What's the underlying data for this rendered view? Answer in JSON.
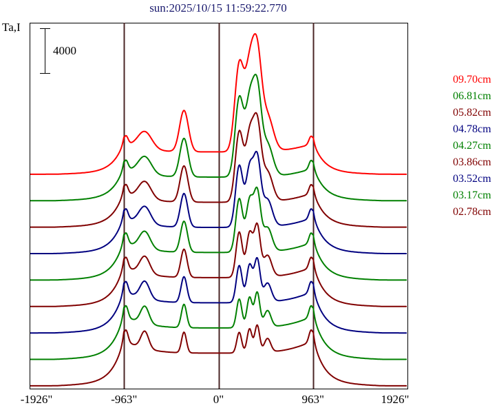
{
  "chart_data": {
    "type": "line",
    "title": "sun:2025/10/15 11:59:22.770",
    "ylabel": "Ta,I",
    "scale_bar_label": "4000",
    "scale_bar_value": 4000,
    "xlim": [
      -1926,
      1926
    ],
    "ylim": [
      -250,
      32400
    ],
    "x_ticks": [
      -1926,
      -963,
      0,
      963,
      1926
    ],
    "x_tick_labels": [
      "-1926\"",
      "-963\"",
      "0\"",
      "963\"",
      "1926\""
    ],
    "vertical_lines": [
      -963,
      0,
      963
    ],
    "offset_step": 2360,
    "limb": 963,
    "series": [
      {
        "name": "09.70cm",
        "color": "#ff0000",
        "disk": 2770,
        "sigma": 45,
        "peaks": [
          [
            -752,
            1540
          ],
          [
            -352,
            3690
          ],
          [
            211,
            7690
          ],
          [
            316,
            6770
          ],
          [
            394,
            8000
          ],
          [
            499,
            3080
          ]
        ]
      },
      {
        "name": "06.81cm",
        "color": "#008000",
        "disk": 2930,
        "sigma": 42,
        "peaks": [
          [
            -752,
            1540
          ],
          [
            -352,
            3440
          ],
          [
            211,
            6950
          ],
          [
            316,
            6210
          ],
          [
            394,
            7320
          ],
          [
            499,
            2830
          ]
        ]
      },
      {
        "name": "05.82cm",
        "color": "#800000",
        "disk": 3090,
        "sigma": 40,
        "peaks": [
          [
            -752,
            1540
          ],
          [
            -352,
            3230
          ],
          [
            211,
            6210
          ],
          [
            316,
            5600
          ],
          [
            394,
            6610
          ],
          [
            499,
            2610
          ]
        ]
      },
      {
        "name": "04.78cm",
        "color": "#000080",
        "disk": 3250,
        "sigma": 37,
        "peaks": [
          [
            -752,
            1540
          ],
          [
            -352,
            3010
          ],
          [
            211,
            5470
          ],
          [
            316,
            5040
          ],
          [
            394,
            5900
          ],
          [
            499,
            2400
          ]
        ]
      },
      {
        "name": "04.27cm",
        "color": "#008000",
        "disk": 3420,
        "sigma": 35,
        "peaks": [
          [
            -752,
            1540
          ],
          [
            -352,
            2770
          ],
          [
            211,
            4770
          ],
          [
            316,
            4460
          ],
          [
            394,
            5230
          ],
          [
            499,
            2150
          ]
        ]
      },
      {
        "name": "03.86cm",
        "color": "#800000",
        "disk": 3580,
        "sigma": 32,
        "peaks": [
          [
            -752,
            1540
          ],
          [
            -352,
            2520
          ],
          [
            211,
            4060
          ],
          [
            316,
            3870
          ],
          [
            394,
            4550
          ],
          [
            499,
            1910
          ]
        ]
      },
      {
        "name": "03.52cm",
        "color": "#000080",
        "disk": 3740,
        "sigma": 30,
        "peaks": [
          [
            -752,
            1540
          ],
          [
            -352,
            2310
          ],
          [
            211,
            3320
          ],
          [
            316,
            3320
          ],
          [
            394,
            3840
          ],
          [
            499,
            1690
          ]
        ]
      },
      {
        "name": "03.17cm",
        "color": "#008000",
        "disk": 3900,
        "sigma": 27,
        "peaks": [
          [
            -752,
            1540
          ],
          [
            -352,
            2090
          ],
          [
            211,
            2580
          ],
          [
            316,
            2710
          ],
          [
            394,
            3140
          ],
          [
            499,
            1480
          ]
        ]
      },
      {
        "name": "02.78cm",
        "color": "#800000",
        "disk": 4060,
        "sigma": 25,
        "peaks": [
          [
            -752,
            1540
          ],
          [
            -352,
            1850
          ],
          [
            211,
            1850
          ],
          [
            316,
            2150
          ],
          [
            394,
            2460
          ],
          [
            499,
            1230
          ]
        ]
      }
    ]
  }
}
